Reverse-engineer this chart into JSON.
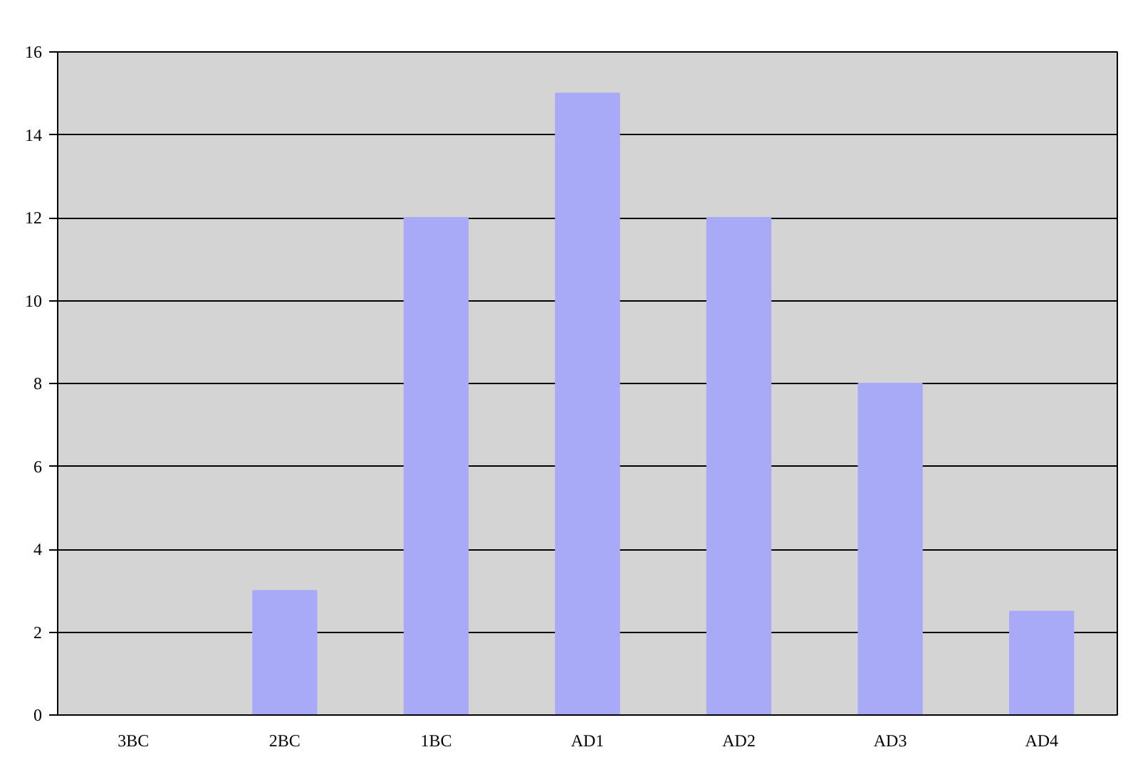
{
  "chart_data": {
    "type": "bar",
    "categories": [
      "3BC",
      "2BC",
      "1BC",
      "AD1",
      "AD2",
      "AD3",
      "AD4"
    ],
    "values": [
      0,
      3,
      12,
      15,
      12,
      8,
      2.5
    ],
    "color": "#a8aaf8",
    "ylim": [
      0,
      16
    ],
    "yticks": [
      0,
      2,
      4,
      6,
      8,
      10,
      12,
      14,
      16
    ],
    "grid": "y"
  }
}
